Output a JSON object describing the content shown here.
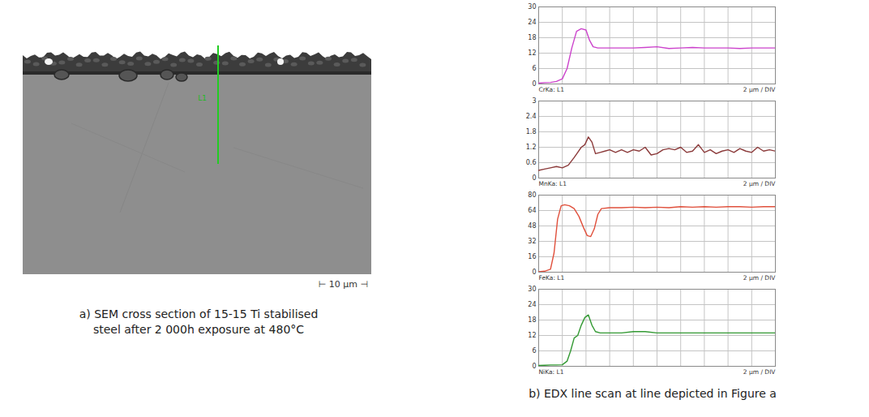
{
  "sem_panel": {
    "line_label": "L1",
    "scale_bar": "⊢ 10 µm ⊣",
    "caption_lines": [
      "a) SEM cross section of 15-15 Ti stabilised",
      "steel after 2 000h exposure at 480°C"
    ]
  },
  "line_scan_caption": "b) EDX line scan at line depicted in Figure a",
  "chart_data": [
    {
      "type": "line",
      "xlabel": "2 µm / DIV",
      "xlim": [
        0,
        20
      ],
      "xticks": [
        0,
        2,
        4,
        6,
        8,
        10,
        12,
        14,
        16,
        18,
        20
      ],
      "ylim": [
        0,
        30
      ],
      "yticks": [
        0,
        6,
        12,
        18,
        24,
        30
      ],
      "grid": true,
      "tick_labels": "y",
      "x": [
        0,
        0.5,
        1,
        1.5,
        2,
        2.4,
        2.8,
        3.2,
        3.6,
        4.0,
        4.3,
        4.6,
        5,
        6,
        7,
        8,
        9,
        10,
        11,
        12,
        13,
        14,
        15,
        16,
        17,
        18,
        19,
        20
      ],
      "series": [
        {
          "name": "CrKa: L1",
          "color": "#cc44cc",
          "values": [
            0.3,
            0.5,
            0.6,
            1,
            2,
            6,
            14,
            20.5,
            21.5,
            21,
            17,
            14.5,
            14,
            14,
            14,
            14,
            14.2,
            14.5,
            13.8,
            14,
            14.2,
            14,
            14,
            14,
            13.8,
            14,
            14,
            14
          ]
        }
      ]
    },
    {
      "type": "line",
      "xlabel": "2 µm / DIV",
      "xlim": [
        0,
        20
      ],
      "xticks": [
        0,
        2,
        4,
        6,
        8,
        10,
        12,
        14,
        16,
        18,
        20
      ],
      "ylim": [
        0,
        3
      ],
      "yticks": [
        0,
        0.6,
        1.2,
        1.8,
        2.4,
        3
      ],
      "grid": true,
      "tick_labels": "y",
      "x": [
        0,
        0.5,
        1,
        1.5,
        2,
        2.5,
        3,
        3.3,
        3.6,
        3.9,
        4.2,
        4.5,
        4.8,
        5.2,
        5.6,
        6,
        6.5,
        7,
        7.5,
        8,
        8.5,
        9,
        9.5,
        10,
        10.5,
        11,
        11.5,
        12,
        12.5,
        13,
        13.5,
        14,
        14.5,
        15,
        15.5,
        16,
        16.5,
        17,
        17.5,
        18,
        18.5,
        19,
        19.5,
        20
      ],
      "series": [
        {
          "name": "MnKa: L1",
          "color": "#8b3a3a",
          "values": [
            0.3,
            0.35,
            0.4,
            0.45,
            0.4,
            0.5,
            0.8,
            1.0,
            1.2,
            1.3,
            1.6,
            1.4,
            0.95,
            1.0,
            1.05,
            1.1,
            1.0,
            1.1,
            1.0,
            1.1,
            1.05,
            1.2,
            0.9,
            0.95,
            1.1,
            1.15,
            1.1,
            1.2,
            1.0,
            1.05,
            1.3,
            1.0,
            1.1,
            0.95,
            1.05,
            1.1,
            1.0,
            1.15,
            1.05,
            1.0,
            1.2,
            1.05,
            1.1,
            1.05
          ]
        }
      ]
    },
    {
      "type": "line",
      "xlabel": "2 µm / DIV",
      "xlim": [
        0,
        20
      ],
      "xticks": [
        0,
        2,
        4,
        6,
        8,
        10,
        12,
        14,
        16,
        18,
        20
      ],
      "ylim": [
        0,
        80
      ],
      "yticks": [
        0,
        16,
        32,
        48,
        64,
        80
      ],
      "grid": true,
      "tick_labels": "y",
      "x": [
        0,
        0.5,
        1,
        1.3,
        1.6,
        1.9,
        2.2,
        2.6,
        3.0,
        3.4,
        3.8,
        4.1,
        4.4,
        4.7,
        5.0,
        5.3,
        6,
        7,
        8,
        9,
        10,
        11,
        12,
        13,
        14,
        15,
        16,
        17,
        18,
        19,
        20
      ],
      "series": [
        {
          "name": "FeKa: L1",
          "color": "#e0503c",
          "values": [
            0.5,
            1,
            3,
            20,
            55,
            69,
            70,
            69,
            66,
            58,
            46,
            38,
            37,
            45,
            60,
            66,
            67,
            67,
            67.5,
            67,
            67.5,
            67,
            68,
            67.5,
            68,
            67.5,
            68,
            68,
            67.5,
            68,
            68
          ]
        }
      ]
    },
    {
      "type": "line",
      "xlabel": "2 µm / DIV",
      "xlim": [
        0,
        20
      ],
      "xticks": [
        0,
        2,
        4,
        6,
        8,
        10,
        12,
        14,
        16,
        18,
        20
      ],
      "ylim": [
        0,
        30
      ],
      "yticks": [
        0,
        6,
        12,
        18,
        24,
        30
      ],
      "grid": true,
      "tick_labels": "y",
      "x": [
        0,
        0.5,
        1,
        1.5,
        2,
        2.4,
        2.7,
        3.0,
        3.3,
        3.6,
        3.9,
        4.2,
        4.5,
        4.8,
        5.2,
        6,
        7,
        8,
        9,
        10,
        11,
        12,
        13,
        14,
        15,
        16,
        17,
        18,
        19,
        20
      ],
      "series": [
        {
          "name": "NiKa: L1",
          "color": "#339933",
          "values": [
            0.3,
            0.4,
            0.5,
            0.5,
            0.6,
            2,
            6,
            11,
            12,
            16,
            19,
            20,
            16,
            13.5,
            13,
            13,
            13,
            13.5,
            13.5,
            13,
            13,
            13,
            13,
            13,
            13,
            13,
            13,
            13,
            13,
            13
          ]
        }
      ]
    }
  ]
}
